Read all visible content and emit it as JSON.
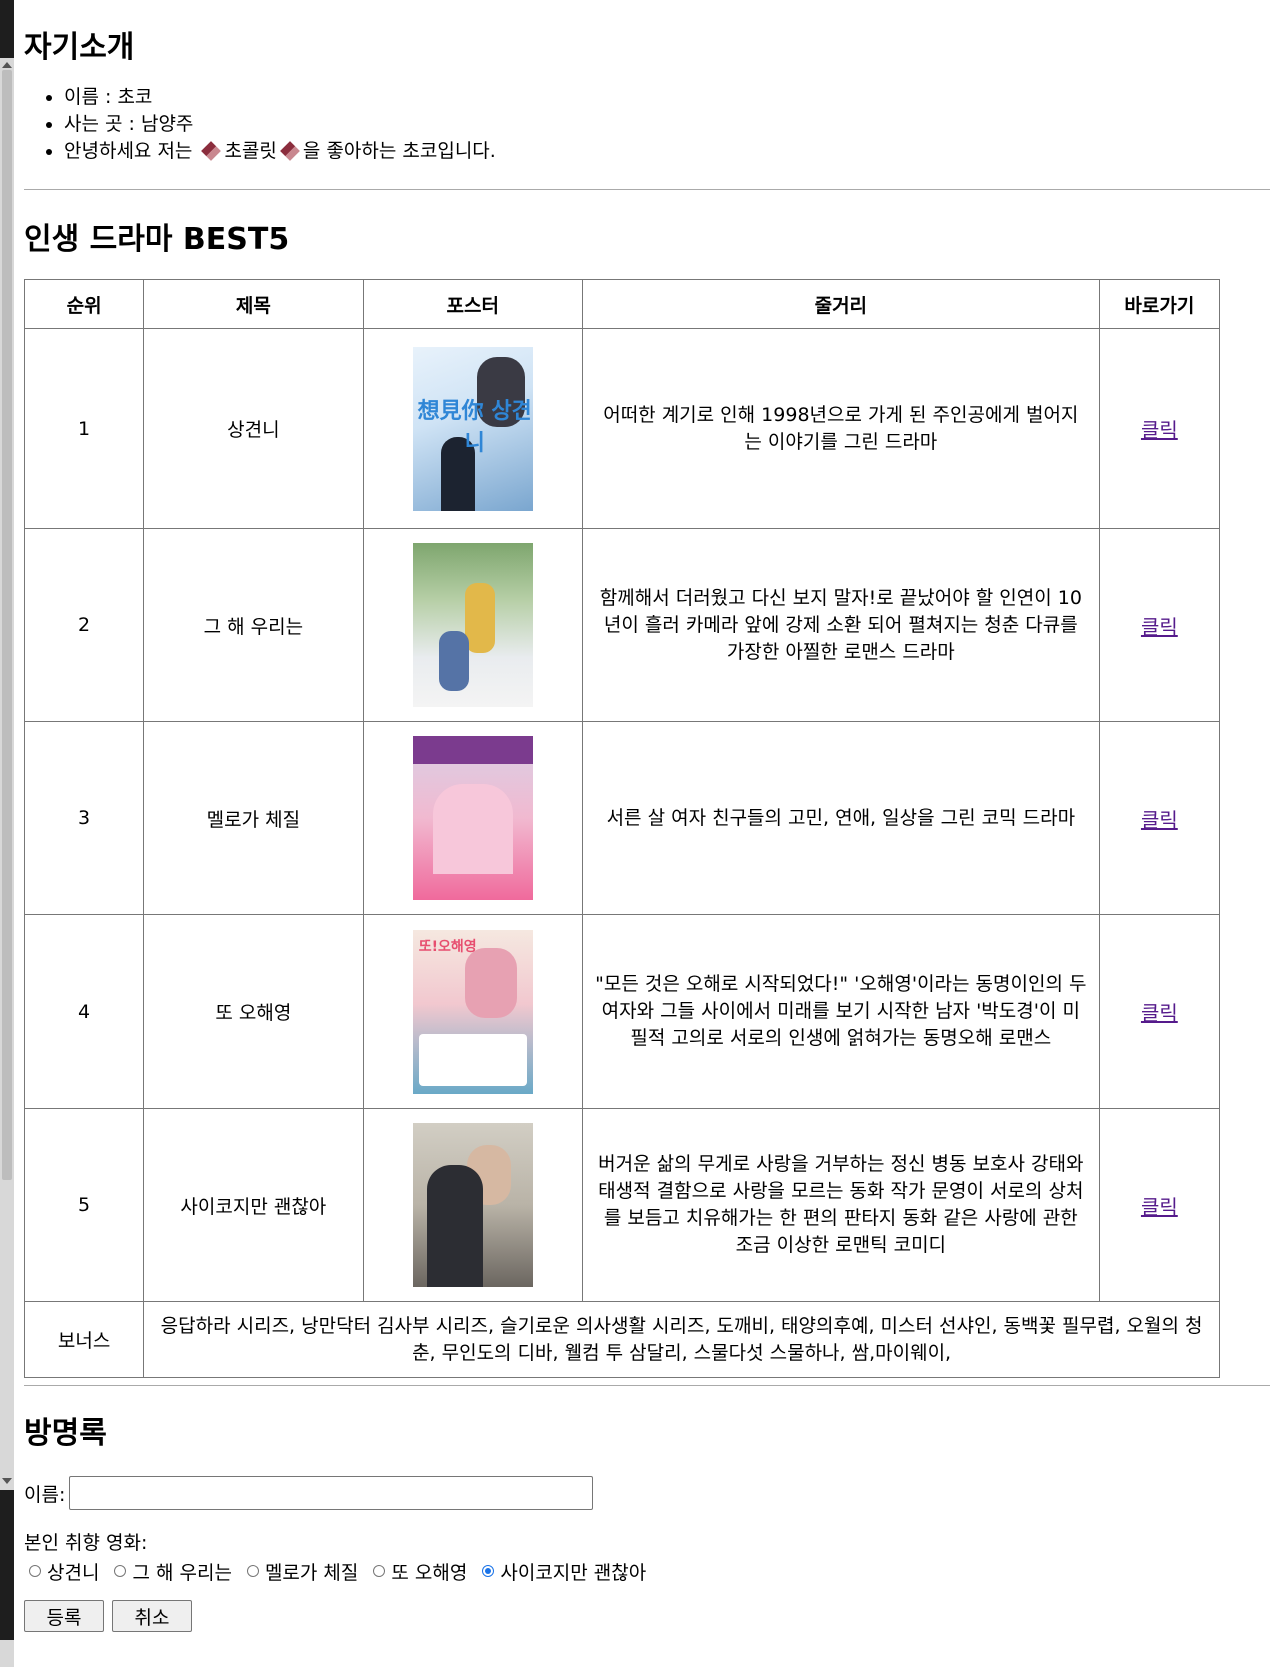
{
  "intro": {
    "heading": "자기소개",
    "name_line": "이름 : 초코",
    "home_line": "사는 곳 : 남양주",
    "greeting_before": "안녕하세요 저는 ",
    "greeting_word": "초콜릿",
    "greeting_after": "을 좋아하는 초코입니다."
  },
  "best": {
    "heading": "인생 드라마 BEST5",
    "columns": [
      "순위",
      "제목",
      "포스터",
      "줄거리",
      "바로가기"
    ],
    "rows": [
      {
        "rank": "1",
        "title": "상견니",
        "plot": "어떠한 계기로 인해 1998년으로 가게 된 주인공에게 벌어지는 이야기를 그린 드라마",
        "link": "클릭",
        "poster_text": "想見你 상견니"
      },
      {
        "rank": "2",
        "title": "그 해 우리는",
        "plot": "함께해서 더러웠고 다신 보지 말자!로 끝났어야 할 인연이 10년이 흘러 카메라 앞에 강제 소환 되어 펼쳐지는 청춘 다큐를 가장한 아찔한 로맨스 드라마",
        "link": "클릭"
      },
      {
        "rank": "3",
        "title": "멜로가 체질",
        "plot": "서른 살 여자 친구들의 고민, 연애, 일상을 그린 코믹 드라마",
        "link": "클릭"
      },
      {
        "rank": "4",
        "title": "또 오해영",
        "plot": "\"모든 것은 오해로 시작되었다!\" '오해영'이라는 동명이인의 두 여자와 그들 사이에서 미래를 보기 시작한 남자 '박도경'이 미필적 고의로 서로의 인생에 얽혀가는 동명오해 로맨스",
        "link": "클릭",
        "poster_text": "또!오해영"
      },
      {
        "rank": "5",
        "title": "사이코지만 괜찮아",
        "plot": "버거운 삶의 무게로 사랑을 거부하는 정신 병동 보호사 강태와 태생적 결함으로 사랑을 모르는 동화 작가 문영이 서로의 상처를 보듬고 치유해가는 한 편의 판타지 동화 같은 사랑에 관한 조금 이상한 로맨틱 코미디",
        "link": "클릭"
      }
    ],
    "bonus_label": "보너스",
    "bonus_text": "응답하라 시리즈, 낭만닥터 김사부 시리즈, 슬기로운 의사생활 시리즈, 도깨비, 태양의후예, 미스터 선샤인, 동백꽃 필무렵, 오월의 청춘, 무인도의 디바, 웰컴 투 삼달리, 스물다섯 스물하나, 쌈,마이웨이,"
  },
  "guestbook": {
    "heading": "방명록",
    "name_label": "이름:",
    "name_value": "",
    "pref_label": "본인 취향 영화:",
    "options": [
      "상견니",
      "그 해 우리는",
      "멜로가 체질",
      "또 오해영",
      "사이코지만 괜찮아"
    ],
    "selected": "사이코지만 괜찮아",
    "submit_label": "등록",
    "cancel_label": "취소"
  },
  "colors": {
    "link_visited": "#551a8b",
    "radio_selected": "#1a73e8"
  }
}
